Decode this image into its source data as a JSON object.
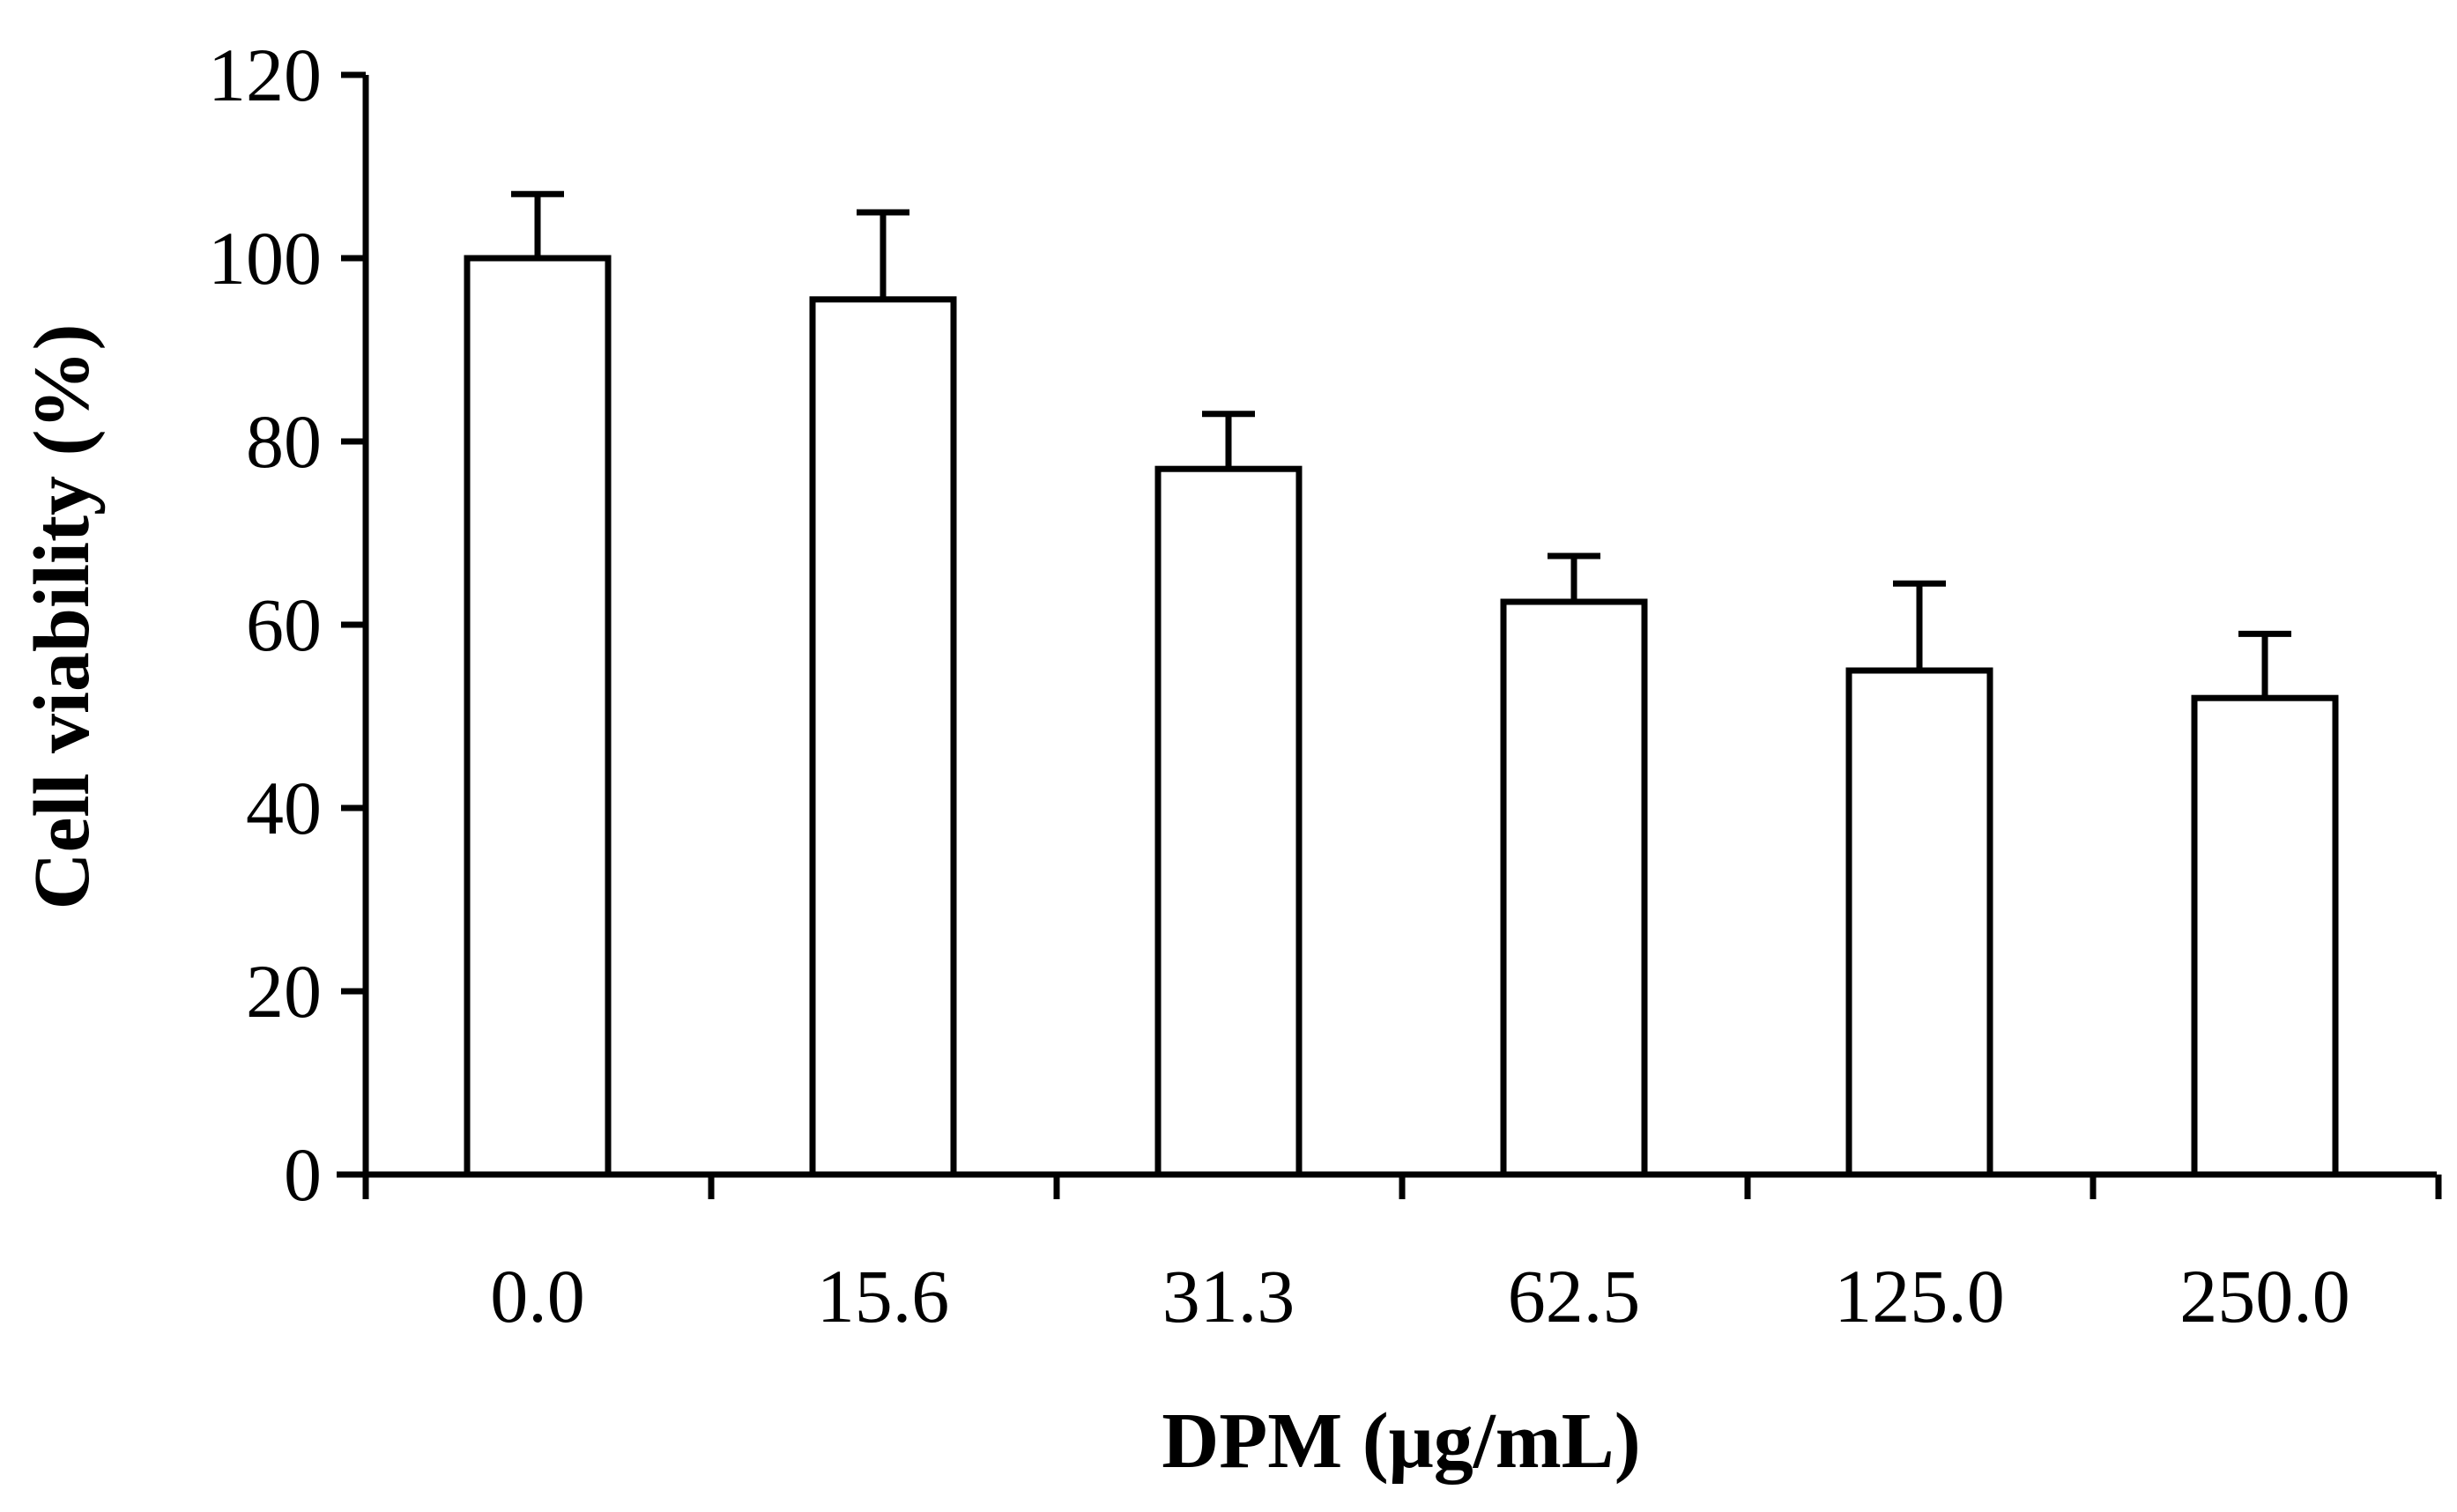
{
  "chart_data": {
    "type": "bar",
    "title": "",
    "xlabel": "DPM (μg/mL)",
    "ylabel": "Cell viability (%)",
    "categories": [
      "0.0",
      "15.6",
      "31.3",
      "62.5",
      "125.0",
      "250.0"
    ],
    "values": [
      100,
      95.5,
      77,
      62.5,
      55,
      52
    ],
    "error_upper": [
      7,
      9.5,
      6,
      5,
      9.5,
      7
    ],
    "ylim": [
      0,
      120
    ],
    "yticks": [
      "0",
      "20",
      "40",
      "60",
      "80",
      "100",
      "120"
    ],
    "grid": false,
    "colors": {
      "bar_fill": "#ffffff",
      "bar_stroke": "#000000",
      "axis": "#000000"
    }
  }
}
